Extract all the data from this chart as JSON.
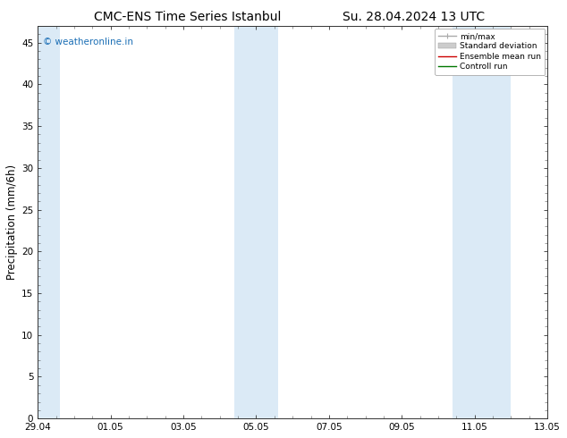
{
  "title_left": "CMC-ENS Time Series Istanbul",
  "title_right": "Su. 28.04.2024 13 UTC",
  "ylabel": "Precipitation (mm/6h)",
  "ylim": [
    0,
    47
  ],
  "yticks": [
    0,
    5,
    10,
    15,
    20,
    25,
    30,
    35,
    40,
    45
  ],
  "xtick_labels": [
    "29.04",
    "01.05",
    "03.05",
    "05.05",
    "07.05",
    "09.05",
    "11.05",
    "13.05"
  ],
  "xtick_positions": [
    0,
    2,
    4,
    6,
    8,
    10,
    12,
    14
  ],
  "xlim": [
    0,
    14
  ],
  "shaded_bands": [
    {
      "x_start": 0.0,
      "x_end": 0.6,
      "color": "#dbeaf6"
    },
    {
      "x_start": 5.4,
      "x_end": 6.6,
      "color": "#dbeaf6"
    },
    {
      "x_start": 11.4,
      "x_end": 13.0,
      "color": "#dbeaf6"
    }
  ],
  "bg_color": "#ffffff",
  "plot_bg_color": "#ffffff",
  "legend_entries": [
    {
      "label": "min/max",
      "color": "#aaaaaa",
      "lw": 1.0
    },
    {
      "label": "Standard deviation",
      "color": "#cccccc",
      "lw": 6
    },
    {
      "label": "Ensemble mean run",
      "color": "#cc0000",
      "lw": 1.0
    },
    {
      "label": "Controll run",
      "color": "#007700",
      "lw": 1.0
    }
  ],
  "watermark": "© weatheronline.in",
  "watermark_color": "#1a6eb5",
  "title_fontsize": 10,
  "tick_fontsize": 7.5,
  "ylabel_fontsize": 8.5,
  "watermark_fontsize": 7.5
}
